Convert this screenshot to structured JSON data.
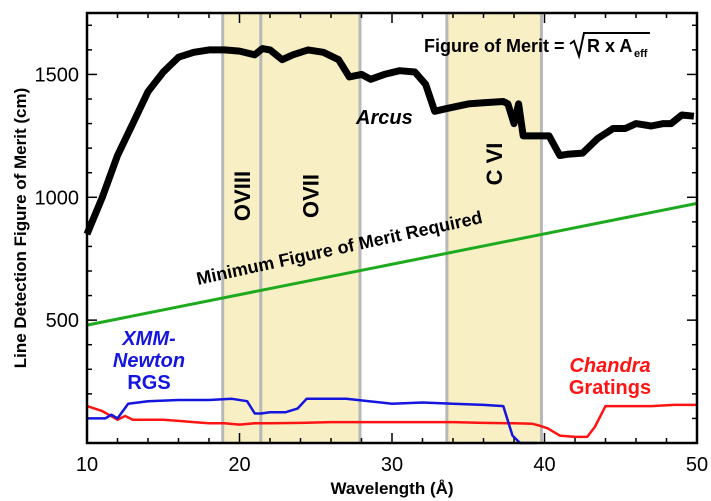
{
  "chart_data": {
    "type": "line",
    "xlabel": "Wavelength (Å)",
    "ylabel": "Line Detection Figure of Merit (cm)",
    "xlim": [
      10,
      50
    ],
    "ylim": [
      0,
      1750
    ],
    "xticks": [
      10,
      20,
      30,
      40,
      50
    ],
    "yticks": [
      500,
      1000,
      1500
    ],
    "grid": false,
    "bands": [
      {
        "label": "OVIII",
        "x0": 18.9,
        "x1": 21.4
      },
      {
        "label": "OVII",
        "x0": 21.4,
        "x1": 27.9
      },
      {
        "label": "C VI",
        "x0": 33.6,
        "x1": 39.8
      }
    ],
    "formula": {
      "lhs": "Figure of Merit =",
      "radicand": "R x A",
      "subscript": "eff"
    },
    "series": [
      {
        "name": "Arcus",
        "color": "#000000",
        "x": [
          10,
          11,
          12,
          13,
          14,
          15,
          16,
          17,
          18,
          19,
          20,
          21,
          21.5,
          22,
          22.8,
          23.5,
          24.5,
          25.5,
          26.5,
          27.2,
          28,
          28.6,
          29.5,
          30.5,
          31.5,
          32.2,
          32.8,
          33.5,
          35,
          36,
          37.3,
          37.6,
          38,
          38.3,
          38.6,
          39.5,
          40.3,
          41,
          41.5,
          42.5,
          43.5,
          44.5,
          45.3,
          46,
          47,
          47.8,
          48.3,
          49,
          49.8
        ],
        "y": [
          850,
          1000,
          1170,
          1300,
          1430,
          1510,
          1570,
          1590,
          1600,
          1600,
          1595,
          1580,
          1605,
          1600,
          1560,
          1580,
          1600,
          1590,
          1560,
          1490,
          1500,
          1480,
          1500,
          1515,
          1510,
          1460,
          1350,
          1360,
          1380,
          1385,
          1390,
          1380,
          1300,
          1380,
          1250,
          1250,
          1250,
          1170,
          1175,
          1180,
          1240,
          1280,
          1280,
          1300,
          1290,
          1300,
          1300,
          1335,
          1330
        ]
      },
      {
        "name": "",
        "color": "#1eaa1e",
        "x": [
          10,
          50
        ],
        "y": [
          480,
          975
        ]
      },
      {
        "name": "XMM-Newton RGS",
        "color": "#1515e0",
        "x": [
          10,
          11.2,
          11.6,
          12,
          12.7,
          14,
          16,
          18,
          19.5,
          20.5,
          21,
          21.4,
          22,
          23,
          23.8,
          24.4,
          25,
          27,
          28.5,
          30,
          32,
          34,
          36,
          37.3,
          37.9,
          38.4,
          39,
          39.5
        ],
        "y": [
          100,
          100,
          115,
          100,
          160,
          170,
          175,
          175,
          180,
          170,
          120,
          120,
          125,
          125,
          140,
          180,
          180,
          180,
          170,
          160,
          165,
          160,
          155,
          150,
          30,
          0,
          0,
          0
        ]
      },
      {
        "name": "Chandra Gratings",
        "color": "#ff1414",
        "x": [
          10,
          11,
          12,
          12.5,
          13,
          14,
          15,
          16,
          17,
          18,
          19,
          20,
          21,
          22,
          24,
          26,
          28,
          30,
          32,
          34,
          36,
          38,
          39.2,
          39.6,
          40.2,
          41,
          42,
          42.8,
          43.3,
          44,
          45,
          47,
          48.5,
          50
        ],
        "y": [
          150,
          130,
          95,
          110,
          95,
          95,
          95,
          90,
          85,
          80,
          80,
          75,
          80,
          80,
          82,
          85,
          85,
          85,
          85,
          85,
          82,
          80,
          78,
          72,
          60,
          30,
          25,
          25,
          65,
          150,
          150,
          150,
          155,
          155
        ]
      }
    ],
    "annotations": [
      {
        "text": "Arcus",
        "color": "#000000"
      },
      {
        "text": "Minimum Figure of Merit Required",
        "color": "#000000"
      },
      {
        "text": "XMM-",
        "color": "#1515e0"
      },
      {
        "text": "Newton",
        "color": "#1515e0"
      },
      {
        "text": "RGS",
        "color": "#1515e0"
      },
      {
        "text": "Chandra",
        "color": "#ff1414"
      },
      {
        "text": "Gratings",
        "color": "#ff1414"
      }
    ],
    "colors": {
      "band_fill": "#f8efc4",
      "band_edge": "#b8b8b8"
    }
  }
}
